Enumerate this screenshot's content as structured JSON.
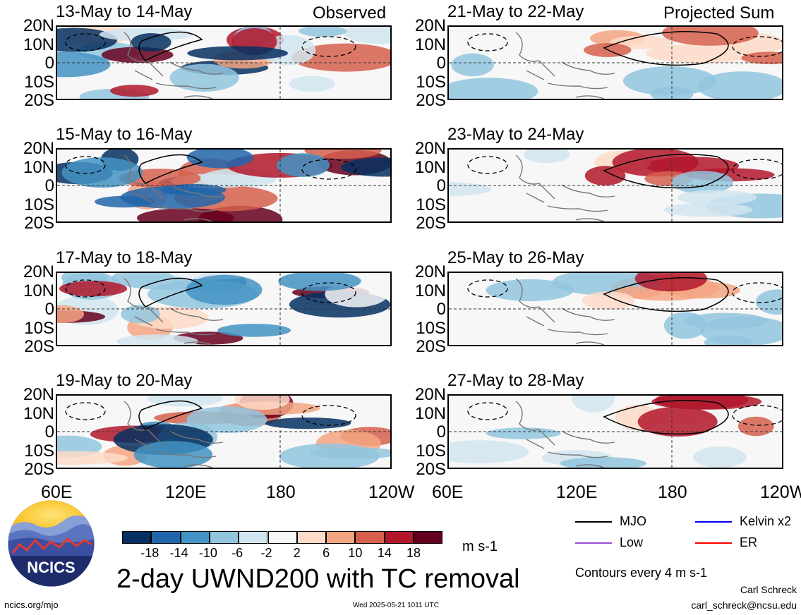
{
  "chart_data": {
    "type": "heatmap",
    "title": "2-day UWND200 with TC removal",
    "units": "m s-1",
    "column_headers": [
      "Observed",
      "Projected Sum"
    ],
    "xticks": [
      "60E",
      "120E",
      "180",
      "120W"
    ],
    "yticks": [
      "20N",
      "10N",
      "0",
      "10S",
      "20S"
    ],
    "panels": [
      {
        "title": "13-May to 14-May",
        "column": "Observed"
      },
      {
        "title": "15-May to 16-May",
        "column": "Observed"
      },
      {
        "title": "17-May to 18-May",
        "column": "Observed"
      },
      {
        "title": "19-May to 20-May",
        "column": "Observed"
      },
      {
        "title": "21-May to 22-May",
        "column": "Projected Sum"
      },
      {
        "title": "23-May to 24-May",
        "column": "Projected Sum"
      },
      {
        "title": "25-May to 26-May",
        "column": "Projected Sum"
      },
      {
        "title": "27-May to 28-May",
        "column": "Projected Sum"
      }
    ],
    "colorbar": {
      "labels": [
        "-18",
        "-14",
        "-10",
        "-6",
        "-2",
        "2",
        "6",
        "10",
        "14",
        "18"
      ],
      "colors": [
        "#053061",
        "#2166ac",
        "#4393c3",
        "#92c5de",
        "#d1e5f0",
        "#f7f7f7",
        "#fddbc7",
        "#f4a582",
        "#d6604d",
        "#b2182b",
        "#67001f"
      ]
    },
    "legend": [
      {
        "label": "MJO",
        "color": "#000000"
      },
      {
        "label": "Kelvin x2",
        "color": "#0000ff"
      },
      {
        "label": "Low",
        "color": "#9b4fd0"
      },
      {
        "label": "ER",
        "color": "#ff0000"
      }
    ],
    "contour_note": "Contours every 4 m s-1"
  },
  "footer": {
    "logo_text": "NCICS",
    "url": "ncics.org/mjo",
    "timestamp": "Wed 2025-05-21 1011 UTC",
    "author": "Carl Schreck",
    "email": "carl_schreck@ncsu.edu"
  }
}
